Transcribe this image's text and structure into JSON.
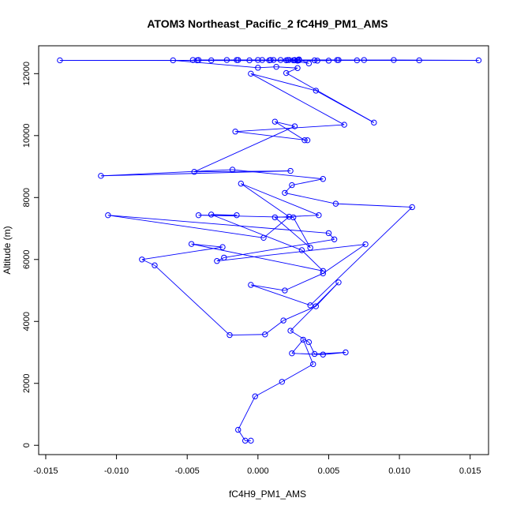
{
  "chart_data": {
    "type": "line",
    "title": "ATOM3 Northeast_Pacific_2 fC4H9_PM1_AMS",
    "xlabel": "fC4H9_PM1_AMS",
    "ylabel": "Altitude (m)",
    "xlim": [
      -0.0155,
      0.0163
    ],
    "ylim": [
      -300,
      12900
    ],
    "x_ticks": [
      -0.015,
      -0.01,
      -0.005,
      0.0,
      0.005,
      0.01,
      0.015
    ],
    "x_tick_labels": [
      "-0.015",
      "-0.010",
      "-0.005",
      "0.000",
      "0.005",
      "0.010",
      "0.015"
    ],
    "y_ticks": [
      0,
      2000,
      4000,
      6000,
      8000,
      10000,
      12000
    ],
    "y_tick_labels": [
      "0",
      "2000",
      "4000",
      "6000",
      "8000",
      "10000",
      "12000"
    ],
    "grid": false,
    "colors": {
      "series": "#0000ff",
      "axes": "#000000",
      "background": "#ffffff"
    },
    "marker": "open-circle",
    "series": [
      {
        "x": [
          -0.0005,
          -0.0009,
          -0.0014,
          -0.0002,
          0.0017,
          0.0039,
          0.0032,
          0.0024,
          0.0046,
          0.0062,
          0.004,
          0.0036,
          0.0023,
          0.0057,
          0.0041,
          0.0018,
          0.0005,
          -0.002,
          -0.0073,
          -0.0082,
          -0.0025,
          -0.0047,
          0.0046,
          0.0031,
          -0.0033,
          -0.0015,
          -0.0042,
          0.0025,
          0.0037,
          0.0012,
          0.0043,
          -0.0012,
          0.0022,
          0.0004,
          -0.0106,
          0.005,
          0.0054,
          -0.0024,
          -0.0029,
          0.0076,
          0.0046,
          0.0019,
          -0.0005,
          0.0037,
          0.0109,
          0.0055,
          0.0019,
          0.0024,
          0.0046,
          -0.0018,
          -0.0111,
          0.0023,
          -0.0045,
          0.0026,
          0.0012,
          0.0033,
          0.0035,
          -0.0016,
          0.0061,
          -0.0005,
          0.0041,
          0.0082,
          0.002,
          0.0028,
          0.0013,
          0.0,
          -0.006,
          0.0008,
          0.0021,
          0.0036,
          0.0029,
          0.0016,
          -0.0006,
          0.0042,
          0.0009,
          0.0026,
          0.0011,
          -0.0015,
          0.0029,
          -0.0022,
          0.0056,
          -0.0043,
          0.0003,
          0.005,
          0.0026,
          -0.0033,
          -0.0014,
          0.0025,
          -0.0046,
          0.002,
          -0.014,
          0.0028,
          0.0,
          0.0057,
          0.0075,
          0.0114,
          -0.0042,
          0.004,
          0.0022,
          0.007,
          0.0096,
          0.0156,
          0.0028
        ],
        "y": [
          150,
          150,
          500,
          1580,
          2050,
          2620,
          3410,
          2970,
          2930,
          3000,
          2950,
          3330,
          3700,
          5260,
          4490,
          4030,
          3580,
          3560,
          5810,
          6000,
          6400,
          6500,
          5630,
          6300,
          7450,
          7430,
          7430,
          7360,
          6380,
          7360,
          7430,
          8450,
          7380,
          6700,
          7430,
          6850,
          6650,
          6060,
          5950,
          6490,
          5550,
          5000,
          5180,
          4520,
          7690,
          7800,
          8150,
          8400,
          8600,
          8900,
          8700,
          8860,
          8830,
          10300,
          10450,
          9850,
          9850,
          10130,
          10350,
          12000,
          11450,
          10420,
          12020,
          12180,
          12220,
          12190,
          12430,
          12430,
          12440,
          12330,
          12460,
          12440,
          12430,
          12420,
          12440,
          12430,
          12440,
          12440,
          12430,
          12440,
          12440,
          12430,
          12440,
          12420,
          12440,
          12430,
          12440,
          12430,
          12440,
          12430,
          12430,
          12420,
          12440,
          12440,
          12440,
          12430,
          12440,
          12430,
          12440,
          12430,
          12440,
          12430,
          12430
        ]
      }
    ]
  }
}
